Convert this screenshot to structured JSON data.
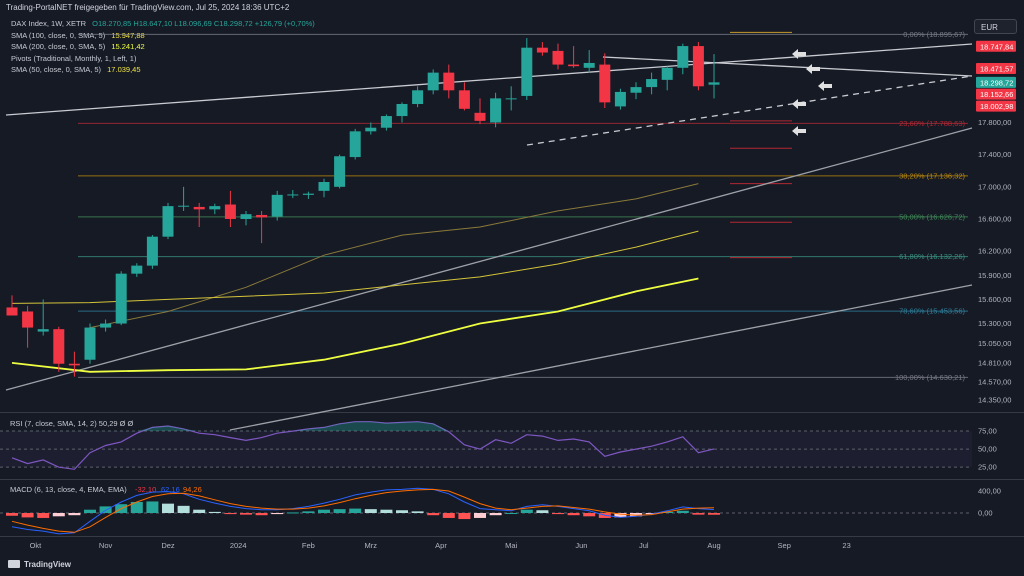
{
  "header": {
    "publish_line": "Trading-PortalNET freigegeben für TradingView.com, Jul 25, 2024 18:36 UTC+2",
    "symbol": "DAX Index, 1W, XETR",
    "ohlc": "O18.270,85 H18.647,10 L18.096,69 C18.298,72 +126,79 (+0,70%)",
    "indicators": [
      {
        "label": "SMA (100, close, 0, SMA, 5)",
        "value": "15.947,88",
        "color": "#f0e442"
      },
      {
        "label": "SMA (200, close, 0, SMA, 5)",
        "value": "15.241,42",
        "color": "#eeff41"
      },
      {
        "label": "Pivots (Traditional, Monthly, 1, Left, 1)",
        "value": "",
        "color": "#d1d4dc"
      },
      {
        "label": "SMA (50, close, 0, SMA, 5)",
        "value": "17.039,45",
        "color": "#f0e442"
      }
    ],
    "currency_button": "EUR"
  },
  "branding": {
    "logo_text": "TradingView"
  },
  "colors": {
    "bg": "#161a25",
    "up": "#26a69a",
    "down": "#f23645",
    "grid": "#2a2e39",
    "text": "#b2b5be"
  },
  "chart_data": [
    {
      "type": "candlestick",
      "title": "DAX Index, 1W, XETR",
      "x_labels": [
        {
          "week": 1.5,
          "label": "Okt"
        },
        {
          "week": 6,
          "label": "Nov"
        },
        {
          "week": 10,
          "label": "Dez"
        },
        {
          "week": 14.5,
          "label": "2024"
        },
        {
          "week": 19,
          "label": "Feb"
        },
        {
          "week": 23,
          "label": "Mrz"
        },
        {
          "week": 27.5,
          "label": "Apr"
        },
        {
          "week": 32,
          "label": "Mai"
        },
        {
          "week": 36.5,
          "label": "Jun"
        },
        {
          "week": 40.5,
          "label": "Jul"
        },
        {
          "week": 45,
          "label": "Aug"
        },
        {
          "week": 49.5,
          "label": "Sep"
        },
        {
          "week": 53.5,
          "label": "23"
        }
      ],
      "y_range": [
        14200,
        18950
      ],
      "y_ticks": [
        "17.800,00",
        "17.400,00",
        "17.000,00",
        "16.600,00",
        "16.200,00",
        "15.900,00",
        "15.600,00",
        "15.300,00",
        "15.050,00",
        "14.810,00",
        "14.570,00",
        "14.350,00"
      ],
      "y_tick_values": [
        17800,
        17400,
        17000,
        16600,
        16200,
        15900,
        15600,
        15300,
        15050,
        14810,
        14570,
        14350
      ],
      "candles": [
        {
          "o": 15500,
          "h": 15650,
          "l": 15400,
          "c": 15400
        },
        {
          "o": 15450,
          "h": 15520,
          "l": 15000,
          "c": 15250
        },
        {
          "o": 15200,
          "h": 15600,
          "l": 15150,
          "c": 15230
        },
        {
          "o": 15230,
          "h": 15260,
          "l": 14700,
          "c": 14800
        },
        {
          "o": 14800,
          "h": 14950,
          "l": 14640,
          "c": 14780
        },
        {
          "o": 14850,
          "h": 15300,
          "l": 14800,
          "c": 15250
        },
        {
          "o": 15250,
          "h": 15350,
          "l": 15200,
          "c": 15300
        },
        {
          "o": 15300,
          "h": 15950,
          "l": 15280,
          "c": 15920
        },
        {
          "o": 15920,
          "h": 16050,
          "l": 15880,
          "c": 16020
        },
        {
          "o": 16020,
          "h": 16400,
          "l": 15980,
          "c": 16380
        },
        {
          "o": 16380,
          "h": 16800,
          "l": 16350,
          "c": 16760
        },
        {
          "o": 16760,
          "h": 17000,
          "l": 16700,
          "c": 16765
        },
        {
          "o": 16750,
          "h": 16800,
          "l": 16500,
          "c": 16720
        },
        {
          "o": 16720,
          "h": 16790,
          "l": 16660,
          "c": 16760
        },
        {
          "o": 16780,
          "h": 16950,
          "l": 16500,
          "c": 16600
        },
        {
          "o": 16600,
          "h": 16700,
          "l": 16520,
          "c": 16660
        },
        {
          "o": 16650,
          "h": 16700,
          "l": 16300,
          "c": 16620
        },
        {
          "o": 16630,
          "h": 16950,
          "l": 16580,
          "c": 16900
        },
        {
          "o": 16900,
          "h": 16960,
          "l": 16860,
          "c": 16905
        },
        {
          "o": 16900,
          "h": 16940,
          "l": 16850,
          "c": 16915
        },
        {
          "o": 16950,
          "h": 17100,
          "l": 16870,
          "c": 17060
        },
        {
          "o": 17000,
          "h": 17400,
          "l": 16980,
          "c": 17380
        },
        {
          "o": 17370,
          "h": 17720,
          "l": 17340,
          "c": 17690
        },
        {
          "o": 17690,
          "h": 17800,
          "l": 17650,
          "c": 17735
        },
        {
          "o": 17735,
          "h": 17900,
          "l": 17700,
          "c": 17880
        },
        {
          "o": 17880,
          "h": 18050,
          "l": 17800,
          "c": 18030
        },
        {
          "o": 18030,
          "h": 18250,
          "l": 17990,
          "c": 18200
        },
        {
          "o": 18200,
          "h": 18460,
          "l": 18150,
          "c": 18420
        },
        {
          "o": 18420,
          "h": 18520,
          "l": 18100,
          "c": 18200
        },
        {
          "o": 18200,
          "h": 18300,
          "l": 17950,
          "c": 17970
        },
        {
          "o": 17920,
          "h": 18100,
          "l": 17780,
          "c": 17820
        },
        {
          "o": 17800,
          "h": 18170,
          "l": 17740,
          "c": 18100
        },
        {
          "o": 18100,
          "h": 18250,
          "l": 17950,
          "c": 18100
        },
        {
          "o": 18130,
          "h": 18850,
          "l": 18080,
          "c": 18730
        },
        {
          "o": 18730,
          "h": 18800,
          "l": 18630,
          "c": 18670
        },
        {
          "o": 18690,
          "h": 18780,
          "l": 18460,
          "c": 18520
        },
        {
          "o": 18520,
          "h": 18750,
          "l": 18480,
          "c": 18500
        },
        {
          "o": 18480,
          "h": 18700,
          "l": 18420,
          "c": 18540
        },
        {
          "o": 18520,
          "h": 18660,
          "l": 17980,
          "c": 18050
        },
        {
          "o": 18000,
          "h": 18220,
          "l": 17960,
          "c": 18180
        },
        {
          "o": 18170,
          "h": 18300,
          "l": 18090,
          "c": 18240
        },
        {
          "o": 18240,
          "h": 18420,
          "l": 18150,
          "c": 18340
        },
        {
          "o": 18330,
          "h": 18500,
          "l": 18200,
          "c": 18480
        },
        {
          "o": 18480,
          "h": 18780,
          "l": 18400,
          "c": 18750
        },
        {
          "o": 18750,
          "h": 18800,
          "l": 18200,
          "c": 18250
        },
        {
          "o": 18270,
          "h": 18650,
          "l": 18100,
          "c": 18299
        }
      ],
      "fibonacci": [
        {
          "label": "0,00% (18.895,67)",
          "value": 18895.67
        },
        {
          "label": "23,60% (17.788,63)",
          "value": 17788.63
        },
        {
          "label": "38,20% (17.136,32)",
          "value": 17136.32
        },
        {
          "label": "50,00% (16.626,72)",
          "value": 16626.72
        },
        {
          "label": "61,80% (16.132,26)",
          "value": 16132.26
        },
        {
          "label": "78,60% (15.453,56)",
          "value": 15453.56
        },
        {
          "label": "100,00% (14.630,21)",
          "value": 14630.21
        }
      ],
      "price_tags": [
        {
          "label": "18.747,84",
          "value": 18747.84,
          "color": "#f23645"
        },
        {
          "label": "18.471,57",
          "value": 18471.57,
          "color": "#f23645"
        },
        {
          "label": "18.298,72",
          "value": 18298.72,
          "color": "#26a69a"
        },
        {
          "label": "18.152,66",
          "value": 18152.66,
          "color": "#f23645"
        },
        {
          "label": "18.002,98",
          "value": 18002.98,
          "color": "#f23645"
        }
      ],
      "sma50": [
        [
          5,
          15250
        ],
        [
          10,
          15450
        ],
        [
          15,
          15750
        ],
        [
          20,
          16150
        ],
        [
          25,
          16400
        ],
        [
          30,
          16500
        ],
        [
          35,
          16700
        ],
        [
          40,
          16850
        ],
        [
          44,
          17040
        ]
      ],
      "sma100": [
        [
          0,
          15550
        ],
        [
          5,
          15560
        ],
        [
          10,
          15600
        ],
        [
          15,
          15640
        ],
        [
          20,
          15680
        ],
        [
          25,
          15780
        ],
        [
          30,
          15880
        ],
        [
          35,
          16040
        ],
        [
          40,
          16250
        ],
        [
          44,
          16450
        ]
      ],
      "sma200": [
        [
          0,
          14810
        ],
        [
          5,
          14700
        ],
        [
          10,
          14720
        ],
        [
          15,
          14730
        ],
        [
          20,
          14850
        ],
        [
          25,
          15050
        ],
        [
          30,
          15300
        ],
        [
          35,
          15450
        ],
        [
          40,
          15700
        ],
        [
          44,
          15860
        ]
      ]
    },
    {
      "type": "line",
      "title": "RSI (7, close, SMA, 14, 2)",
      "values_label": "50,29 Ø Ø",
      "y_ticks": [
        "75,00",
        "50,00",
        "25,00"
      ],
      "y_tick_values": [
        75,
        50,
        25
      ],
      "y_range": [
        10,
        100
      ],
      "rsi": [
        38,
        30,
        35,
        25,
        22,
        45,
        55,
        60,
        72,
        80,
        82,
        78,
        72,
        70,
        66,
        62,
        66,
        72,
        75,
        78,
        80,
        85,
        88,
        88,
        86,
        87,
        88,
        85,
        74,
        56,
        50,
        63,
        58,
        70,
        68,
        62,
        64,
        60,
        40,
        46,
        50,
        54,
        60,
        67,
        45,
        50.29
      ]
    },
    {
      "type": "bar",
      "title": "MACD (6, 13, close, 4, EMA, EMA)",
      "values": [
        "-32,10",
        "62,16",
        "94,26"
      ],
      "y_ticks": [
        "400,00",
        "0,00"
      ],
      "y_tick_values": [
        400,
        0
      ],
      "y_range": [
        -400,
        600
      ],
      "histogram": [
        -50,
        -80,
        -90,
        -60,
        -40,
        60,
        120,
        160,
        200,
        210,
        170,
        130,
        60,
        20,
        -20,
        -30,
        -40,
        -20,
        10,
        30,
        60,
        70,
        80,
        70,
        60,
        50,
        30,
        -40,
        -90,
        -110,
        -90,
        -40,
        0,
        60,
        50,
        -20,
        -40,
        -60,
        -90,
        -80,
        -60,
        -20,
        20,
        40,
        -30,
        -32
      ],
      "macd": [
        -250,
        -300,
        -330,
        -380,
        -360,
        -150,
        50,
        200,
        320,
        380,
        390,
        350,
        250,
        180,
        120,
        80,
        60,
        60,
        80,
        120,
        180,
        250,
        330,
        380,
        420,
        430,
        450,
        430,
        350,
        200,
        80,
        60,
        40,
        120,
        150,
        120,
        80,
        40,
        -40,
        -80,
        -60,
        -20,
        40,
        110,
        80,
        62
      ],
      "signal": [
        -150,
        -220,
        -280,
        -330,
        -350,
        -250,
        -80,
        80,
        200,
        300,
        350,
        360,
        310,
        240,
        170,
        120,
        90,
        70,
        70,
        90,
        130,
        190,
        260,
        320,
        370,
        400,
        420,
        430,
        400,
        290,
        170,
        90,
        60,
        90,
        120,
        130,
        100,
        70,
        20,
        -20,
        -40,
        -30,
        20,
        70,
        90,
        94
      ]
    }
  ]
}
